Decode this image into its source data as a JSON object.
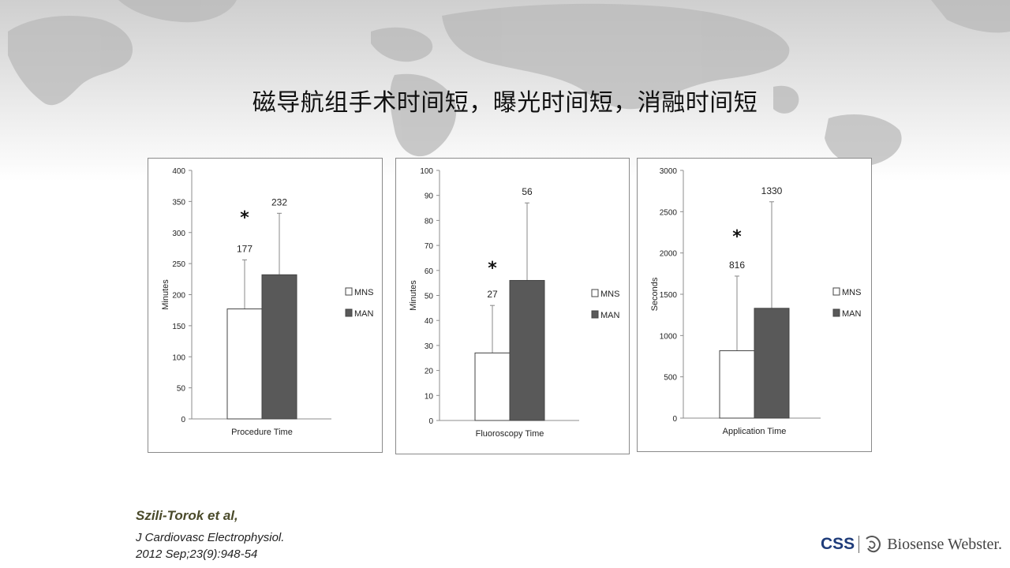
{
  "title": "磁导航组手术时间短，曝光时间短，消融时间短",
  "legend": {
    "mns": "MNS",
    "man": "MAN"
  },
  "colors": {
    "mns": "#ffffff",
    "man": "#595959",
    "axis": "#8c8c8c",
    "border": "#8a8a8a"
  },
  "chart_data": [
    {
      "type": "bar",
      "categories": [
        "Procedure Time"
      ],
      "xlabel": "",
      "ylabel": "Minutes",
      "ylim": [
        0,
        400
      ],
      "yticks": [
        0,
        50,
        100,
        150,
        200,
        250,
        300,
        350,
        400
      ],
      "series": [
        {
          "name": "MNS",
          "values": [
            177
          ],
          "error_upper": [
            256
          ],
          "label": "177"
        },
        {
          "name": "MAN",
          "values": [
            232
          ],
          "error_upper": [
            331
          ],
          "label": "232"
        }
      ],
      "annotation": "*",
      "legend_position": "right"
    },
    {
      "type": "bar",
      "categories": [
        "Fluoroscopy Time"
      ],
      "xlabel": "",
      "ylabel": "Minutes",
      "ylim": [
        0,
        100
      ],
      "yticks": [
        0,
        10,
        20,
        30,
        40,
        50,
        60,
        70,
        80,
        90,
        100
      ],
      "series": [
        {
          "name": "MNS",
          "values": [
            27
          ],
          "error_upper": [
            46
          ],
          "label": "27"
        },
        {
          "name": "MAN",
          "values": [
            56
          ],
          "error_upper": [
            87
          ],
          "label": "56"
        }
      ],
      "annotation": "*",
      "legend_position": "right"
    },
    {
      "type": "bar",
      "categories": [
        "Application Time"
      ],
      "xlabel": "",
      "ylabel": "Seconds",
      "ylim": [
        0,
        3000
      ],
      "yticks": [
        0,
        500,
        1000,
        1500,
        2000,
        2500,
        3000
      ],
      "series": [
        {
          "name": "MNS",
          "values": [
            816
          ],
          "error_upper": [
            1720
          ],
          "label": "816"
        },
        {
          "name": "MAN",
          "values": [
            1330
          ],
          "error_upper": [
            2620
          ],
          "label": "1330"
        }
      ],
      "annotation": "*",
      "legend_position": "right"
    }
  ],
  "citation": {
    "author": "Szili-Torok  et al,",
    "journal": "J Cardiovasc Electrophysiol.",
    "reference": "2012 Sep;23(9):948-54"
  },
  "logo": {
    "css": "CSS",
    "company": "Biosense Webster."
  }
}
